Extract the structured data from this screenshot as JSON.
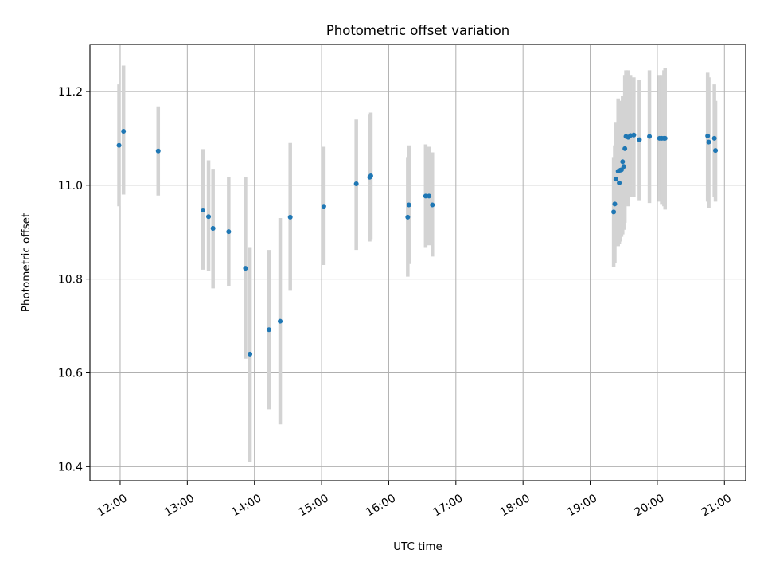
{
  "chart_data": {
    "type": "scatter",
    "title": "Photometric offset variation",
    "xlabel": "UTC time",
    "ylabel": "Photometric offset",
    "x_ticks": [
      "12:00",
      "13:00",
      "14:00",
      "15:00",
      "16:00",
      "17:00",
      "18:00",
      "19:00",
      "20:00",
      "21:00"
    ],
    "y_ticks": [
      "10.4",
      "10.6",
      "10.8",
      "11.0",
      "11.2"
    ],
    "xlim": [
      "11:33",
      "21:19"
    ],
    "ylim": [
      10.37,
      11.3
    ],
    "grid": true,
    "marker_color": "#1f77b4",
    "errorbar_color": "#d3d3d3",
    "points": [
      {
        "x": "11:59",
        "y": 11.085,
        "ylo": 10.955,
        "yhi": 11.215
      },
      {
        "x": "12:03",
        "y": 11.115,
        "ylo": 10.98,
        "yhi": 11.255
      },
      {
        "x": "12:34",
        "y": 11.073,
        "ylo": 10.978,
        "yhi": 11.168
      },
      {
        "x": "13:14",
        "y": 10.947,
        "ylo": 10.82,
        "yhi": 11.077
      },
      {
        "x": "13:19",
        "y": 10.933,
        "ylo": 10.818,
        "yhi": 11.053
      },
      {
        "x": "13:23",
        "y": 10.908,
        "ylo": 10.78,
        "yhi": 11.035
      },
      {
        "x": "13:37",
        "y": 10.901,
        "ylo": 10.785,
        "yhi": 11.018
      },
      {
        "x": "13:52",
        "y": 10.823,
        "ylo": 10.63,
        "yhi": 11.018
      },
      {
        "x": "13:56",
        "y": 10.64,
        "ylo": 10.41,
        "yhi": 10.868
      },
      {
        "x": "14:13",
        "y": 10.692,
        "ylo": 10.522,
        "yhi": 10.862
      },
      {
        "x": "14:23",
        "y": 10.71,
        "ylo": 10.49,
        "yhi": 10.93
      },
      {
        "x": "14:32",
        "y": 10.932,
        "ylo": 10.775,
        "yhi": 11.09
      },
      {
        "x": "15:02",
        "y": 10.955,
        "ylo": 10.83,
        "yhi": 11.082
      },
      {
        "x": "15:31",
        "y": 11.003,
        "ylo": 10.862,
        "yhi": 11.14
      },
      {
        "x": "15:43",
        "y": 11.017,
        "ylo": 10.88,
        "yhi": 11.152
      },
      {
        "x": "15:44",
        "y": 11.02,
        "ylo": 10.885,
        "yhi": 11.155
      },
      {
        "x": "16:17",
        "y": 10.932,
        "ylo": 10.805,
        "yhi": 11.06
      },
      {
        "x": "16:18",
        "y": 10.958,
        "ylo": 10.832,
        "yhi": 11.085
      },
      {
        "x": "16:33",
        "y": 10.977,
        "ylo": 10.868,
        "yhi": 11.087
      },
      {
        "x": "16:36",
        "y": 10.977,
        "ylo": 10.872,
        "yhi": 11.082
      },
      {
        "x": "16:39",
        "y": 10.958,
        "ylo": 10.848,
        "yhi": 11.07
      },
      {
        "x": "19:21",
        "y": 10.943,
        "ylo": 10.825,
        "yhi": 11.06
      },
      {
        "x": "19:22",
        "y": 10.96,
        "ylo": 10.835,
        "yhi": 11.085
      },
      {
        "x": "19:23",
        "y": 11.013,
        "ylo": 10.88,
        "yhi": 11.135
      },
      {
        "x": "19:25",
        "y": 11.03,
        "ylo": 10.87,
        "yhi": 11.185
      },
      {
        "x": "19:26",
        "y": 11.005,
        "ylo": 10.875,
        "yhi": 11.13
      },
      {
        "x": "19:27",
        "y": 11.032,
        "ylo": 10.88,
        "yhi": 11.18
      },
      {
        "x": "19:28",
        "y": 11.033,
        "ylo": 10.89,
        "yhi": 11.175
      },
      {
        "x": "19:29",
        "y": 11.05,
        "ylo": 10.895,
        "yhi": 11.19
      },
      {
        "x": "19:30",
        "y": 11.04,
        "ylo": 10.905,
        "yhi": 11.175
      },
      {
        "x": "19:31",
        "y": 11.078,
        "ylo": 10.92,
        "yhi": 11.235
      },
      {
        "x": "19:32",
        "y": 11.104,
        "ylo": 10.96,
        "yhi": 11.245
      },
      {
        "x": "19:34",
        "y": 11.102,
        "ylo": 10.955,
        "yhi": 11.245
      },
      {
        "x": "19:36",
        "y": 11.106,
        "ylo": 10.975,
        "yhi": 11.235
      },
      {
        "x": "19:39",
        "y": 11.107,
        "ylo": 10.975,
        "yhi": 11.23
      },
      {
        "x": "19:44",
        "y": 11.097,
        "ylo": 10.968,
        "yhi": 11.225
      },
      {
        "x": "19:53",
        "y": 11.104,
        "ylo": 10.962,
        "yhi": 11.245
      },
      {
        "x": "20:02",
        "y": 11.1,
        "ylo": 10.965,
        "yhi": 11.235
      },
      {
        "x": "20:04",
        "y": 11.1,
        "ylo": 10.96,
        "yhi": 11.235
      },
      {
        "x": "20:06",
        "y": 11.1,
        "ylo": 10.955,
        "yhi": 11.245
      },
      {
        "x": "20:07",
        "y": 11.1,
        "ylo": 10.948,
        "yhi": 11.25
      },
      {
        "x": "20:45",
        "y": 11.105,
        "ylo": 10.965,
        "yhi": 11.24
      },
      {
        "x": "20:46",
        "y": 11.092,
        "ylo": 10.952,
        "yhi": 11.23
      },
      {
        "x": "20:51",
        "y": 11.1,
        "ylo": 10.975,
        "yhi": 11.215
      },
      {
        "x": "20:52",
        "y": 11.074,
        "ylo": 10.965,
        "yhi": 11.18
      }
    ]
  }
}
